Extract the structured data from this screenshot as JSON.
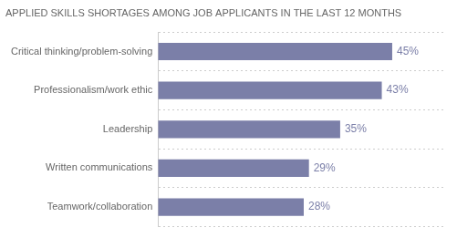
{
  "chart_data": {
    "type": "bar",
    "orientation": "horizontal",
    "title": "APPLIED SKILLS SHORTAGES AMONG JOB APPLICANTS IN THE LAST 12 MONTHS",
    "categories": [
      "Teamwork/collaboration",
      "Written communications",
      "Leadership",
      "Professionalism/work ethic",
      "Critical thinking/problem-solving"
    ],
    "values": [
      28,
      29,
      35,
      43,
      45
    ],
    "value_labels": [
      "28%",
      "29%",
      "35%",
      "43%",
      "45%"
    ],
    "data_labels": true,
    "color": "#7b7fa8",
    "xlim": [
      0,
      55
    ],
    "grid": true,
    "tick_labels": "y"
  }
}
